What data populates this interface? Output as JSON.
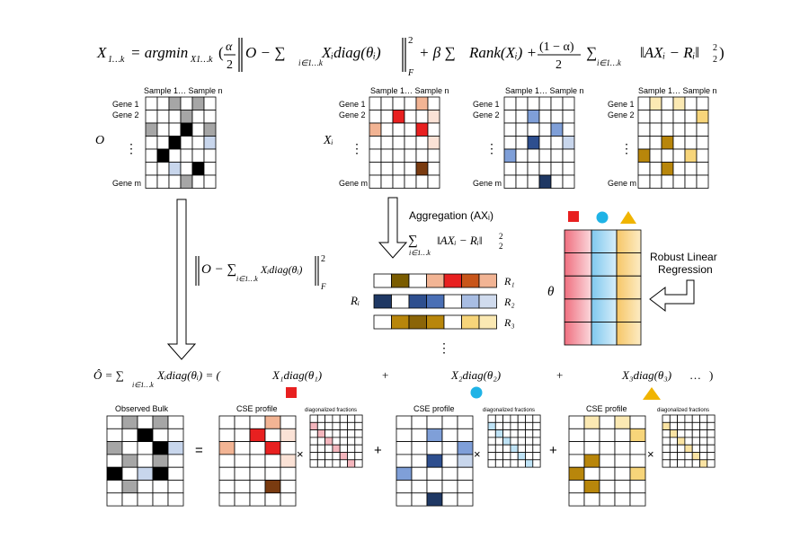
{
  "colors": {
    "red": "#e82020",
    "red_light": "#f2b494",
    "red_pale": "#fbe2d6",
    "dark_brown": "#7a3b10",
    "blue_mid": "#7f9fd8",
    "blue_dark": "#2e4f8f",
    "navy": "#1f3864",
    "blue_pale": "#c8d6ec",
    "gold": "#b8860b",
    "gold_light": "#f7d57a",
    "gold_pale": "#fbe9b3",
    "gray": "#a6a6a6",
    "black": "#000000",
    "cyan": "#1fb3e6",
    "triangle": "#f0b400"
  },
  "equations": {
    "main": {
      "lhs": "X",
      "lhs_sub": "1…k",
      "eq": "= argmin",
      "argmin_sub": "X1…k",
      "open_paren": "(",
      "frac1_num": "α",
      "frac1_den": "2",
      "norm_inner": "O − ∑",
      "sum_sub": "i∈1…k",
      "term": "Xᵢdiag(θᵢ)",
      "norm_sup": "2",
      "norm_sub": "F",
      "plus_beta": "+ β ∑",
      "rank_term": "Rank(Xᵢ) +",
      "frac2_num": "(1 − α)",
      "frac2_den": "2",
      "sum3": "∑",
      "reg_term": "‖AXᵢ − Rᵢ‖",
      "reg_sup": "2",
      "reg_sub": "2",
      "close": ")"
    },
    "mid_norm": {
      "text": "O − ∑",
      "sum_sub": "i∈1…k",
      "term": "Xᵢdiag(θᵢ)",
      "sup": "2",
      "sub": "F"
    },
    "agg_label": "Aggregation (AXᵢ)",
    "agg_sum": "∑",
    "agg_sum_sub": "i∈1…k",
    "agg_term": "‖AXᵢ − Rᵢ‖",
    "agg_sup": "2",
    "agg_sub": "2",
    "o_hat": {
      "lhs": "Ô = ∑",
      "sum_sub": "i∈1…k",
      "term": "Xᵢdiag(θᵢ) = (",
      "t1": "X₁diag(θ₁)",
      "plus1": "+",
      "t2": "X₂diag(θ₂)",
      "plus2": "+",
      "t3": "X₃diag(θ₃)",
      "dots": "…",
      "close": ")"
    }
  },
  "matrix_labels": {
    "samples_header": "Sample 1… Sample n",
    "gene1": "Gene 1",
    "gene2": "Gene 2",
    "genem": "Gene m",
    "vdots": "⋮",
    "O": "O",
    "Xi": "Xᵢ",
    "Ri": "Rᵢ",
    "theta": "θ"
  },
  "r_labels": [
    "R₁",
    "R₂",
    "R₃"
  ],
  "r_dots": "⋮",
  "robust_label": [
    "Robust Linear",
    "Regression"
  ],
  "bottom": {
    "observed_bulk": "Observed Bulk",
    "equals": "=",
    "cse_profile": "CSE profile",
    "diag_fractions": "diagonalized fractions",
    "times": "×",
    "plus": "+"
  },
  "shapes": [
    "square",
    "circle",
    "triangle"
  ]
}
